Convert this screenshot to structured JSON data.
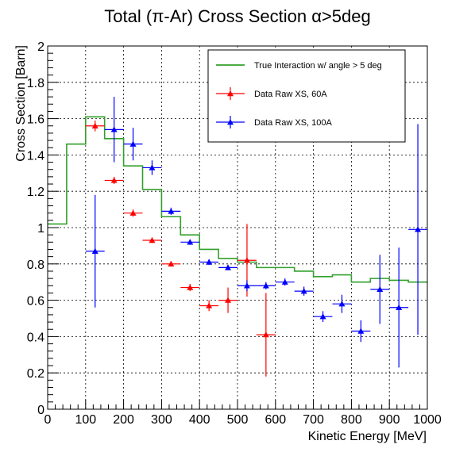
{
  "chart_data": {
    "type": "scatter",
    "title": "Total (π-Ar) Cross Section α>5deg",
    "xlabel": "Kinetic Energy [MeV]",
    "ylabel": "Cross Section [Barn]",
    "xlim": [
      0,
      1000
    ],
    "ylim": [
      0,
      2
    ],
    "x_ticks": [
      "0",
      "100",
      "200",
      "300",
      "400",
      "500",
      "600",
      "700",
      "800",
      "900",
      "1000"
    ],
    "y_ticks": [
      "0",
      "0.2",
      "0.4",
      "0.6",
      "0.8",
      "1",
      "1.2",
      "1.4",
      "1.6",
      "1.8",
      "2"
    ],
    "grid": true,
    "legend_position": "top-right",
    "colors": {
      "true": "#33a02c",
      "data60": "#ff0000",
      "data100": "#0000ff"
    },
    "series": [
      {
        "name": "True Interaction w/ angle > 5 deg",
        "kind": "step",
        "bin_edges": [
          0,
          50,
          100,
          150,
          200,
          250,
          300,
          350,
          400,
          450,
          500,
          550,
          600,
          650,
          700,
          750,
          800,
          850,
          900,
          950,
          1000
        ],
        "values": [
          1.02,
          1.46,
          1.61,
          1.49,
          1.34,
          1.21,
          1.06,
          0.96,
          0.88,
          0.83,
          0.81,
          0.78,
          0.78,
          0.76,
          0.73,
          0.74,
          0.7,
          0.72,
          0.71,
          0.7
        ]
      },
      {
        "name": "Data Raw XS, 60A",
        "kind": "points",
        "points": [
          {
            "x": 125,
            "y": 1.56,
            "yerr": 0.03
          },
          {
            "x": 175,
            "y": 1.26,
            "yerr": 0.02
          },
          {
            "x": 225,
            "y": 1.08,
            "yerr": 0.02
          },
          {
            "x": 275,
            "y": 0.93,
            "yerr": 0.015
          },
          {
            "x": 325,
            "y": 0.8,
            "yerr": 0.015
          },
          {
            "x": 375,
            "y": 0.67,
            "yerr": 0.02
          },
          {
            "x": 425,
            "y": 0.57,
            "yerr": 0.03
          },
          {
            "x": 475,
            "y": 0.6,
            "yerr": 0.07
          },
          {
            "x": 525,
            "y": 0.82,
            "yerr": 0.2
          },
          {
            "x": 575,
            "y": 0.41,
            "yerr": 0.23
          }
        ]
      },
      {
        "name": "Data Raw XS, 100A",
        "kind": "points",
        "points": [
          {
            "x": 125,
            "y": 0.87,
            "yerr": 0.31
          },
          {
            "x": 175,
            "y": 1.54,
            "yerr": 0.18
          },
          {
            "x": 225,
            "y": 1.46,
            "yerr": 0.09
          },
          {
            "x": 275,
            "y": 1.33,
            "yerr": 0.04
          },
          {
            "x": 325,
            "y": 1.09,
            "yerr": 0.02
          },
          {
            "x": 375,
            "y": 0.92,
            "yerr": 0.015
          },
          {
            "x": 425,
            "y": 0.81,
            "yerr": 0.015
          },
          {
            "x": 475,
            "y": 0.78,
            "yerr": 0.015
          },
          {
            "x": 525,
            "y": 0.68,
            "yerr": 0.03
          },
          {
            "x": 575,
            "y": 0.68,
            "yerr": 0.02
          },
          {
            "x": 625,
            "y": 0.7,
            "yerr": 0.02
          },
          {
            "x": 675,
            "y": 0.65,
            "yerr": 0.025
          },
          {
            "x": 725,
            "y": 0.51,
            "yerr": 0.03
          },
          {
            "x": 775,
            "y": 0.58,
            "yerr": 0.05
          },
          {
            "x": 825,
            "y": 0.43,
            "yerr": 0.06
          },
          {
            "x": 875,
            "y": 0.66,
            "yerr": 0.19
          },
          {
            "x": 925,
            "y": 0.56,
            "yerr": 0.33
          },
          {
            "x": 975,
            "y": 0.99,
            "yerr": 0.58
          }
        ]
      }
    ]
  }
}
